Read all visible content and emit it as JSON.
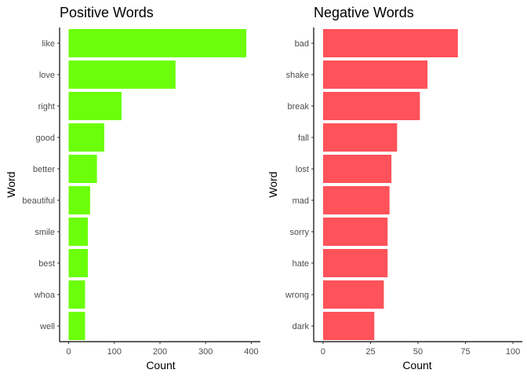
{
  "chart_data": [
    {
      "type": "bar",
      "orientation": "horizontal",
      "title": "Positive Words",
      "xlabel": "Count",
      "ylabel": "Word",
      "categories": [
        "like",
        "love",
        "right",
        "good",
        "better",
        "beautiful",
        "smile",
        "best",
        "whoa",
        "well"
      ],
      "values": [
        389,
        234,
        116,
        78,
        62,
        47,
        42,
        42,
        36,
        36
      ],
      "xlim": [
        0,
        400
      ],
      "xticks": [
        0,
        100,
        200,
        300,
        400
      ],
      "bar_color": "#6BFF0A",
      "grid": false
    },
    {
      "type": "bar",
      "orientation": "horizontal",
      "title": "Negative Words",
      "xlabel": "Count",
      "ylabel": "Word",
      "categories": [
        "bad",
        "shake",
        "break",
        "fall",
        "lost",
        "mad",
        "sorry",
        "hate",
        "wrong",
        "dark"
      ],
      "values": [
        71,
        55,
        51,
        39,
        36,
        35,
        34,
        34,
        32,
        27
      ],
      "xlim": [
        0,
        100
      ],
      "xticks": [
        0,
        25,
        50,
        75,
        100
      ],
      "bar_color": "#FF525A",
      "grid": false
    }
  ]
}
